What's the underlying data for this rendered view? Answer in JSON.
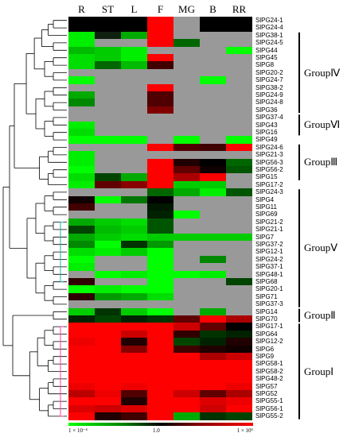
{
  "columns": [
    "R",
    "ST",
    "L",
    "F",
    "MG",
    "B",
    "RR"
  ],
  "rows": [
    {
      "label": "SlPG24-1",
      "c": [
        "#000000",
        "#000000",
        "#000000",
        "#ff0000",
        "#999999",
        "#000000",
        "#000000"
      ]
    },
    {
      "label": "SlPG24-4",
      "c": [
        "#000000",
        "#000000",
        "#000000",
        "#ff0000",
        "#999999",
        "#000000",
        "#000000"
      ]
    },
    {
      "label": "SlPG38-1",
      "c": [
        "#00ee00",
        "#102010",
        "#00aa00",
        "#ff0000",
        "#999999",
        "#999999",
        "#999999"
      ]
    },
    {
      "label": "SlPG24-5",
      "c": [
        "#00ee00",
        "#999999",
        "#999999",
        "#ff0000",
        "#006600",
        "#999999",
        "#999999"
      ]
    },
    {
      "label": "SlPG44",
      "c": [
        "#00bb00",
        "#00cc00",
        "#00ee00",
        "#999999",
        "#999999",
        "#999999",
        "#00ff00"
      ]
    },
    {
      "label": "SlPG45",
      "c": [
        "#00dd00",
        "#00cc00",
        "#00ee00",
        "#ff0000",
        "#999999",
        "#999999",
        "#999999"
      ]
    },
    {
      "label": "SlPG8",
      "c": [
        "#00dd00",
        "#006600",
        "#00bb00",
        "#400000",
        "#999999",
        "#999999",
        "#999999"
      ]
    },
    {
      "label": "SlPG20-2",
      "c": [
        "#999999",
        "#999999",
        "#999999",
        "#999999",
        "#999999",
        "#999999",
        "#999999"
      ]
    },
    {
      "label": "SlPG24-7",
      "c": [
        "#00ff00",
        "#999999",
        "#999999",
        "#999999",
        "#999999",
        "#00ff00",
        "#999999"
      ]
    },
    {
      "label": "SlPG38-2",
      "c": [
        "#999999",
        "#999999",
        "#999999",
        "#ff0000",
        "#999999",
        "#999999",
        "#999999"
      ]
    },
    {
      "label": "SlPG24-9",
      "c": [
        "#00aa00",
        "#999999",
        "#999999",
        "#500000",
        "#999999",
        "#999999",
        "#999999"
      ]
    },
    {
      "label": "SlPG24-8",
      "c": [
        "#008800",
        "#999999",
        "#999999",
        "#500000",
        "#999999",
        "#999999",
        "#999999"
      ]
    },
    {
      "label": "SlPG36",
      "c": [
        "#999999",
        "#999999",
        "#999999",
        "#800000",
        "#999999",
        "#999999",
        "#999999"
      ]
    },
    {
      "label": "SlPG37-4",
      "c": [
        "#999999",
        "#999999",
        "#999999",
        "#999999",
        "#999999",
        "#999999",
        "#999999"
      ]
    },
    {
      "label": "SlPG43",
      "c": [
        "#00ee00",
        "#999999",
        "#999999",
        "#999999",
        "#999999",
        "#999999",
        "#999999"
      ]
    },
    {
      "label": "SlPG16",
      "c": [
        "#00dd00",
        "#999999",
        "#999999",
        "#999999",
        "#999999",
        "#999999",
        "#999999"
      ]
    },
    {
      "label": "SlPG49",
      "c": [
        "#00ff00",
        "#00ff00",
        "#00ff00",
        "#999999",
        "#00ff00",
        "#999999",
        "#00ff00"
      ]
    },
    {
      "label": "SlPG24-6",
      "c": [
        "#999999",
        "#999999",
        "#999999",
        "#ff0000",
        "#500000",
        "#400000",
        "#ff0000"
      ]
    },
    {
      "label": "SlPG21-3",
      "c": [
        "#00ee00",
        "#999999",
        "#999999",
        "#999999",
        "#999999",
        "#999999",
        "#999999"
      ]
    },
    {
      "label": "SlPG56-3",
      "c": [
        "#00ee00",
        "#999999",
        "#999999",
        "#ff0000",
        "#200000",
        "#000000",
        "#006600"
      ]
    },
    {
      "label": "SlPG56-2",
      "c": [
        "#00ff00",
        "#999999",
        "#999999",
        "#ff0000",
        "#600000",
        "#100000",
        "#005500"
      ]
    },
    {
      "label": "SlPG15",
      "c": [
        "#00dd00",
        "#004400",
        "#00aa00",
        "#ff0000",
        "#aa0000",
        "#ff0000",
        "#999999"
      ]
    },
    {
      "label": "SlPG17-2",
      "c": [
        "#00ee00",
        "#600000",
        "#880000",
        "#ff0000",
        "#00cc00",
        "#00cc00",
        "#999999"
      ]
    },
    {
      "label": "SlPG24-3",
      "c": [
        "#999999",
        "#999999",
        "#999999",
        "#006600",
        "#00aa00",
        "#00ee00",
        "#005500"
      ]
    },
    {
      "label": "SlPG4",
      "c": [
        "#100000",
        "#00ff00",
        "#007700",
        "#000000",
        "#999999",
        "#999999",
        "#999999"
      ]
    },
    {
      "label": "SlPG11",
      "c": [
        "#400000",
        "#999999",
        "#999999",
        "#001800",
        "#999999",
        "#999999",
        "#999999"
      ]
    },
    {
      "label": "SlPG69",
      "c": [
        "#999999",
        "#999999",
        "#999999",
        "#002200",
        "#00ff00",
        "#999999",
        "#999999"
      ]
    },
    {
      "label": "SlPG21-2",
      "c": [
        "#00aa00",
        "#00cc00",
        "#00dd00",
        "#005500",
        "#999999",
        "#999999",
        "#999999"
      ]
    },
    {
      "label": "SlPG21-1",
      "c": [
        "#004400",
        "#00bb00",
        "#00cc00",
        "#005500",
        "#999999",
        "#999999",
        "#999999"
      ]
    },
    {
      "label": "SlPG7",
      "c": [
        "#00aa00",
        "#00cc00",
        "#00dd00",
        "#00cc00",
        "#00cc00",
        "#00cc00",
        "#00cc00"
      ]
    },
    {
      "label": "SlPG37-2",
      "c": [
        "#008800",
        "#00ff00",
        "#003300",
        "#009900",
        "#999999",
        "#999999",
        "#999999"
      ]
    },
    {
      "label": "SlPG12-1",
      "c": [
        "#00dd00",
        "#00ee00",
        "#00cc00",
        "#00ff00",
        "#999999",
        "#999999",
        "#999999"
      ]
    },
    {
      "label": "SlPG24-2",
      "c": [
        "#00ff00",
        "#999999",
        "#999999",
        "#00ff00",
        "#999999",
        "#008800",
        "#999999"
      ]
    },
    {
      "label": "SlPG37-1",
      "c": [
        "#00ee00",
        "#999999",
        "#999999",
        "#00ff00",
        "#999999",
        "#999999",
        "#999999"
      ]
    },
    {
      "label": "SlPG48-1",
      "c": [
        "#999999",
        "#00ff00",
        "#00ee00",
        "#00ff00",
        "#00ff00",
        "#00ee00",
        "#999999"
      ]
    },
    {
      "label": "SlPG68",
      "c": [
        "#300000",
        "#999999",
        "#999999",
        "#00ff00",
        "#999999",
        "#999999",
        "#004400"
      ]
    },
    {
      "label": "SlPG20-1",
      "c": [
        "#00ff00",
        "#00ee00",
        "#00ff00",
        "#00ff00",
        "#999999",
        "#999999",
        "#999999"
      ]
    },
    {
      "label": "SlPG71",
      "c": [
        "#300000",
        "#009900",
        "#00aa00",
        "#00dd00",
        "#999999",
        "#999999",
        "#999999"
      ]
    },
    {
      "label": "SlPG37-3",
      "c": [
        "#999999",
        "#999999",
        "#999999",
        "#999999",
        "#999999",
        "#999999",
        "#999999"
      ]
    },
    {
      "label": "SlPG14",
      "c": [
        "#00cc00",
        "#003300",
        "#00cc00",
        "#00ff00",
        "#999999",
        "#00aa00",
        "#999999"
      ]
    },
    {
      "label": "SlPG70",
      "c": [
        "#002200",
        "#004400",
        "#002200",
        "#003300",
        "#600000",
        "#ff0000",
        "#aa0000"
      ]
    },
    {
      "label": "SlPG17-1",
      "c": [
        "#ff0000",
        "#ff0000",
        "#ff0000",
        "#ff0000",
        "#cc0000",
        "#600000",
        "#000000"
      ]
    },
    {
      "label": "SlPG64",
      "c": [
        "#ff0000",
        "#ff0000",
        "#cc0000",
        "#ff0000",
        "#300000",
        "#003300",
        "#002200"
      ]
    },
    {
      "label": "SlPG12-2",
      "c": [
        "#ee0000",
        "#ff0000",
        "#200000",
        "#ff0000",
        "#004400",
        "#002200",
        "#200000"
      ]
    },
    {
      "label": "SlPG6",
      "c": [
        "#ff0000",
        "#ff0000",
        "#880000",
        "#ff0000",
        "#400000",
        "#200000",
        "#100000"
      ]
    },
    {
      "label": "SlPG9",
      "c": [
        "#ff0000",
        "#ff0000",
        "#ff0000",
        "#ff0000",
        "#ff0000",
        "#aa0000",
        "#cc0000"
      ]
    },
    {
      "label": "SlPG58-1",
      "c": [
        "#ff0000",
        "#ff0000",
        "#ff0000",
        "#ff0000",
        "#ff0000",
        "#ff0000",
        "#ff0000"
      ]
    },
    {
      "label": "SlPG58-2",
      "c": [
        "#ff0000",
        "#ff0000",
        "#ff0000",
        "#ff0000",
        "#ff0000",
        "#ff0000",
        "#ff0000"
      ]
    },
    {
      "label": "SlPG48-2",
      "c": [
        "#ff0000",
        "#ff0000",
        "#ff0000",
        "#ff0000",
        "#ff0000",
        "#ff0000",
        "#ff0000"
      ]
    },
    {
      "label": "SlPG57",
      "c": [
        "#ee0000",
        "#ff0000",
        "#ee0000",
        "#ff0000",
        "#ff0000",
        "#ff0000",
        "#ee0000"
      ]
    },
    {
      "label": "SlPG52",
      "c": [
        "#bb0000",
        "#ee0000",
        "#500000",
        "#ff0000",
        "#cc0000",
        "#600000",
        "#aa0000"
      ]
    },
    {
      "label": "SlPG55-1",
      "c": [
        "#ff0000",
        "#ff0000",
        "#200000",
        "#ff0000",
        "#ff0000",
        "#dd0000",
        "#ee0000"
      ]
    },
    {
      "label": "SlPG56-1",
      "c": [
        "#dd0000",
        "#cc0000",
        "#dd0000",
        "#ff0000",
        "#ff0000",
        "#cc0000",
        "#ff0000"
      ]
    },
    {
      "label": "SlPG55-2",
      "c": [
        "#ff0000",
        "#200000",
        "#400000",
        "#ff0000",
        "#00aa00",
        "#003300",
        "#004400"
      ]
    }
  ],
  "groups": [
    {
      "label": "GroupⅣ",
      "start": 2,
      "end": 12
    },
    {
      "label": "GroupⅥ",
      "start": 13,
      "end": 15
    },
    {
      "label": "GroupⅢ",
      "start": 17,
      "end": 21
    },
    {
      "label": "GroupⅤ",
      "start": 23,
      "end": 38
    },
    {
      "label": "GroupⅡ",
      "start": 39,
      "end": 40
    },
    {
      "label": "GroupⅠ",
      "start": 41,
      "end": 53
    }
  ],
  "legend": {
    "min": "1 × 10⁻⁶",
    "mid": "1.0",
    "max": "1 × 10⁶",
    "colors": [
      "#00ff00",
      "#000000",
      "#ff0000"
    ]
  },
  "neutral_color": "#999999",
  "highlight_colors": {
    "teal": "#20b0a0",
    "pink": "#ff40a0"
  }
}
